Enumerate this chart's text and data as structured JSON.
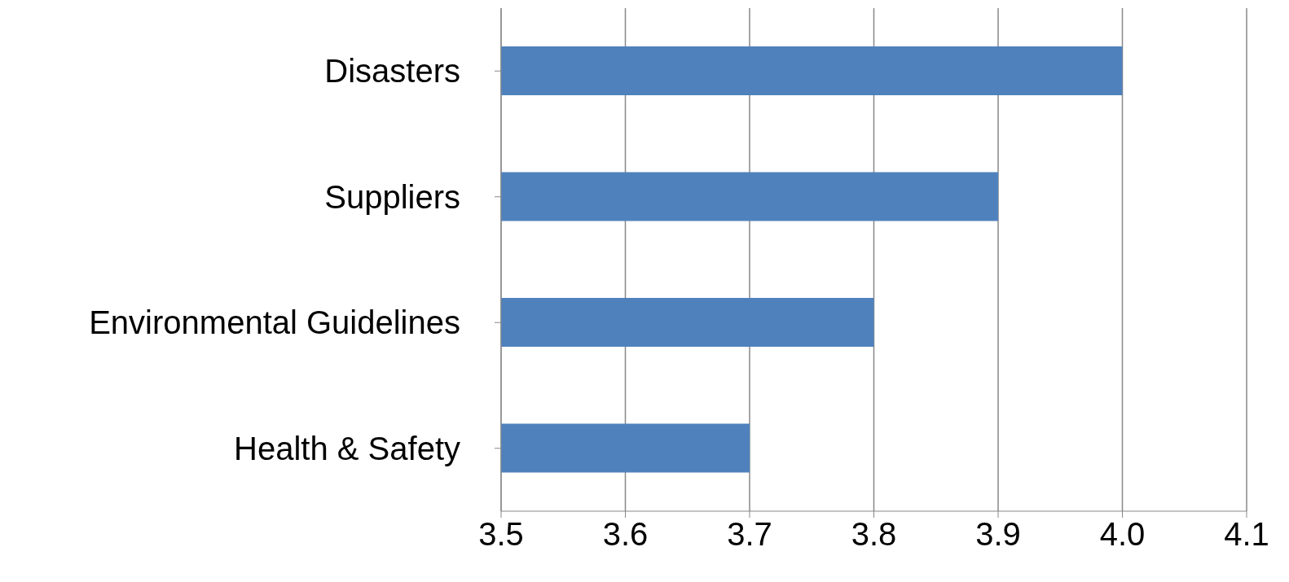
{
  "chart_data": {
    "type": "bar",
    "orientation": "horizontal",
    "categories": [
      "Disasters",
      "Suppliers",
      "Environmental Guidelines",
      "Health & Safety"
    ],
    "values": [
      4.0,
      3.9,
      3.8,
      3.7
    ],
    "color": "#4f81bd",
    "xlim": [
      3.5,
      4.1
    ],
    "xticks": [
      3.5,
      3.6,
      3.7,
      3.8,
      3.9,
      {
        "value": 4,
        "label": "4.0"
      },
      4.1
    ],
    "grid": "x"
  }
}
